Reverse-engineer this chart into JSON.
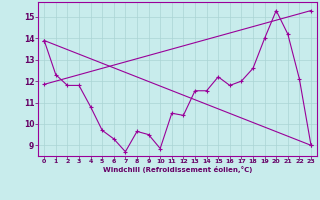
{
  "x": [
    0,
    1,
    2,
    3,
    4,
    5,
    6,
    7,
    8,
    9,
    10,
    11,
    12,
    13,
    14,
    15,
    16,
    17,
    18,
    19,
    20,
    21,
    22,
    23
  ],
  "line1": [
    13.9,
    12.3,
    11.8,
    11.8,
    10.8,
    9.7,
    9.3,
    8.7,
    9.65,
    9.5,
    8.85,
    10.5,
    10.4,
    11.55,
    11.55,
    12.2,
    11.8,
    12.0,
    12.6,
    14.0,
    15.3,
    14.2,
    12.1,
    9.0
  ],
  "line2_x": [
    0,
    23
  ],
  "line2_y": [
    11.85,
    15.3
  ],
  "line3_x": [
    0,
    23
  ],
  "line3_y": [
    13.9,
    9.0
  ],
  "xlim": [
    -0.5,
    23.5
  ],
  "ylim": [
    8.5,
    15.7
  ],
  "yticks": [
    9,
    10,
    11,
    12,
    13,
    14,
    15
  ],
  "xticks": [
    0,
    1,
    2,
    3,
    4,
    5,
    6,
    7,
    8,
    9,
    10,
    11,
    12,
    13,
    14,
    15,
    16,
    17,
    18,
    19,
    20,
    21,
    22,
    23
  ],
  "xlabel": "Windchill (Refroidissement éolien,°C)",
  "color": "#990099",
  "bg_color": "#c8ecec",
  "grid_color": "#aad4d4",
  "tick_label_color": "#660066",
  "xlabel_color": "#660066"
}
